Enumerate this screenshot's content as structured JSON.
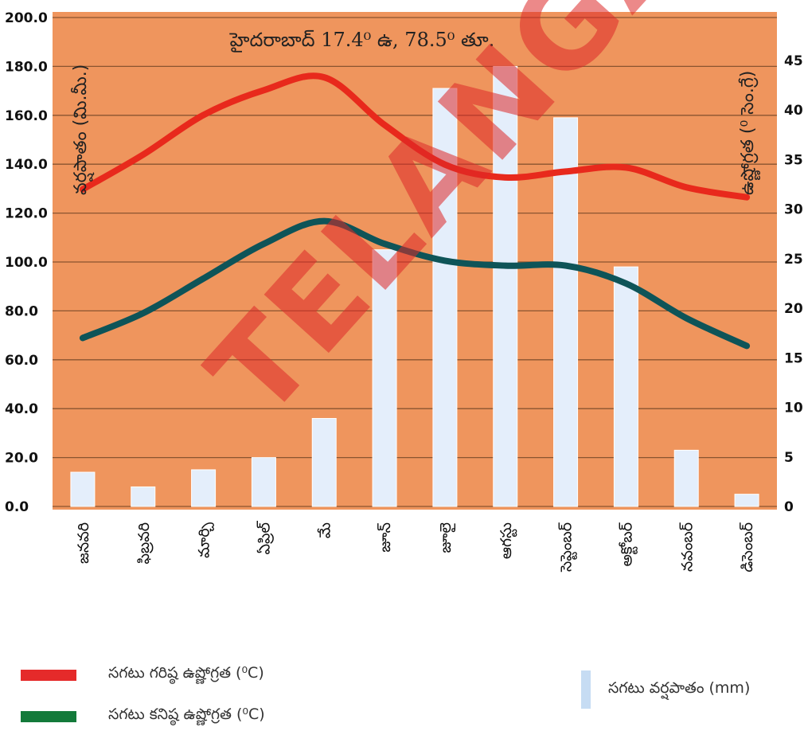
{
  "chart_data": {
    "type": "bar+line",
    "title": "హైదరాబాద్ 17.4⁰ ఉ, 78.5⁰ తూ.",
    "categories": [
      "జనవరి",
      "ఫిబ్రవరి",
      "మార్చి",
      "ఏప్రిల్",
      "మే",
      "జూన్",
      "జూలై",
      "ఆగస్టు",
      "సెప్టెంబర్",
      "అక్టోబర్",
      "నవంబర్",
      "డిసెంబర్"
    ],
    "ylabel_left": "వర్షపాతం (మి.మీ.)",
    "ylabel_right": "ఉష్ణోగ్రత (⁰ సెం.గ్రే)",
    "y_left_ticks": [
      "0.0",
      "20.0",
      "40.0",
      "60.0",
      "80.0",
      "100.0",
      "120.0",
      "140.0",
      "160.0",
      "180.0",
      "200.0"
    ],
    "y_right_ticks": [
      "0",
      "5",
      "10",
      "15",
      "20",
      "25",
      "30",
      "35",
      "40",
      "45"
    ],
    "ylim_left": [
      0,
      200
    ],
    "ylim_right": [
      0,
      50
    ],
    "grid": true,
    "series": [
      {
        "name": "సగటు వర్షపాతం (mm)",
        "kind": "bar",
        "axis": "left",
        "color": "#e4eefb",
        "values": [
          14,
          8,
          15,
          20,
          36,
          105,
          171,
          180,
          159,
          98,
          23,
          5
        ]
      },
      {
        "name": "సగటు గరిష్ఠ ఉష్ణోగ్రత (⁰C)",
        "kind": "line",
        "axis": "right",
        "color": "#e8291c",
        "values": [
          32,
          35.5,
          39.5,
          42,
          43.3,
          38.5,
          34.5,
          33.2,
          33.8,
          34.2,
          32.2,
          31.2
        ]
      },
      {
        "name": "సగటు కనిష్ఠ ఉష్ణోగ్రత (⁰C)",
        "kind": "line",
        "axis": "right",
        "color": "#0e5458",
        "values": [
          17,
          19.5,
          23,
          26.5,
          28.8,
          26.5,
          24.8,
          24.3,
          24.3,
          22.5,
          19,
          16.2
        ]
      }
    ]
  },
  "legend": {
    "max_temp": "సగటు గరిష్ఠ ఉష్ణోగ్రత (⁰C)",
    "min_temp": "సగటు కనిష్ఠ ఉష్ణోగ్రత (⁰C)",
    "rainfall": "సగటు వర్షపాతం (mm)",
    "max_color": "#e52a2a",
    "min_color": "#137a3a",
    "rain_color": "#c6dcf3"
  },
  "watermark": "TELANGANA",
  "colors": {
    "plot_bg": "#ef955d",
    "grid": "#8a5530"
  }
}
